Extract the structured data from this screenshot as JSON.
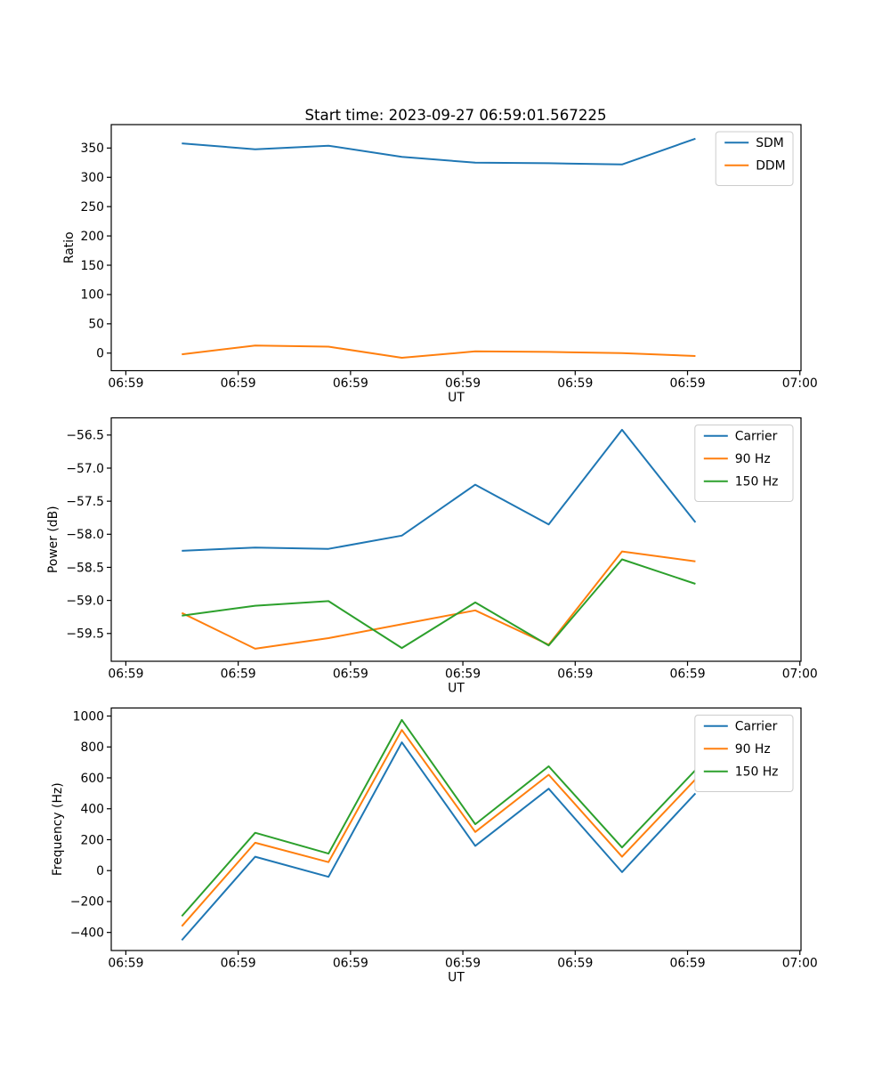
{
  "title": "Start time: 2023-09-27 06:59:01.567225",
  "colors": {
    "blue": "#1f77b4",
    "orange": "#ff7f0e",
    "green": "#2ca02c"
  },
  "x_axis": {
    "label": "UT",
    "tick_labels": [
      "06:59",
      "06:59",
      "06:59",
      "06:59",
      "06:59",
      "06:59",
      "07:00"
    ]
  },
  "chart_data": [
    {
      "type": "line",
      "title": "Start time: 2023-09-27 06:59:01.567225",
      "xlabel": "UT",
      "ylabel": "Ratio",
      "x": [
        4.98,
        11.51,
        18.04,
        24.57,
        31.1,
        37.64,
        44.17,
        50.7
      ],
      "series": [
        {
          "name": "SDM",
          "color": "#1f77b4",
          "values": [
            358,
            348,
            354,
            335,
            325,
            324,
            322,
            366
          ]
        },
        {
          "name": "DDM",
          "color": "#ff7f0e",
          "values": [
            -2,
            13,
            11,
            -8,
            3,
            2,
            0,
            -5
          ]
        }
      ],
      "xlim": [
        -1.3,
        60.1
      ],
      "ylim": [
        -30,
        390
      ],
      "x_ticks": {
        "positions": [
          0,
          10,
          20,
          30,
          40,
          50,
          60
        ],
        "labels": [
          "06:59",
          "06:59",
          "06:59",
          "06:59",
          "06:59",
          "06:59",
          "07:00"
        ]
      },
      "y_ticks": {
        "positions": [
          0,
          50,
          100,
          150,
          200,
          250,
          300,
          350
        ],
        "labels": [
          "0",
          "50",
          "100",
          "150",
          "200",
          "250",
          "300",
          "350"
        ]
      },
      "legend_position": "upper right",
      "grid": false
    },
    {
      "type": "line",
      "title": "",
      "xlabel": "UT",
      "ylabel": "Power (dB)",
      "x": [
        4.98,
        11.51,
        18.04,
        24.57,
        31.1,
        37.64,
        44.17,
        50.7
      ],
      "series": [
        {
          "name": "Carrier",
          "color": "#1f77b4",
          "values": [
            -58.25,
            -58.2,
            -58.22,
            -58.02,
            -57.25,
            -57.85,
            -56.42,
            -57.82
          ]
        },
        {
          "name": "90 Hz",
          "color": "#ff7f0e",
          "values": [
            -59.19,
            -59.73,
            -59.57,
            -59.36,
            -59.15,
            -59.67,
            -58.26,
            -58.41
          ]
        },
        {
          "name": "150 Hz",
          "color": "#2ca02c",
          "values": [
            -59.23,
            -59.08,
            -59.01,
            -59.72,
            -59.03,
            -59.68,
            -58.38,
            -58.75
          ]
        }
      ],
      "xlim": [
        -1.3,
        60.1
      ],
      "ylim": [
        -59.92,
        -56.24
      ],
      "x_ticks": {
        "positions": [
          0,
          10,
          20,
          30,
          40,
          50,
          60
        ],
        "labels": [
          "06:59",
          "06:59",
          "06:59",
          "06:59",
          "06:59",
          "06:59",
          "07:00"
        ]
      },
      "y_ticks": {
        "positions": [
          -56.5,
          -57.0,
          -57.5,
          -58.0,
          -58.5,
          -59.0,
          -59.5
        ],
        "labels": [
          "−56.5",
          "−57.0",
          "−57.5",
          "−58.0",
          "−58.5",
          "−59.0",
          "−59.5"
        ]
      },
      "legend_position": "upper right",
      "grid": false
    },
    {
      "type": "line",
      "title": "",
      "xlabel": "UT",
      "ylabel": "Frequency (Hz)",
      "x": [
        4.98,
        11.51,
        18.04,
        24.57,
        31.1,
        37.64,
        44.17,
        50.7
      ],
      "series": [
        {
          "name": "Carrier",
          "color": "#1f77b4",
          "values": [
            -450,
            90,
            -40,
            830,
            160,
            530,
            -10,
            500
          ]
        },
        {
          "name": "90 Hz",
          "color": "#ff7f0e",
          "values": [
            -360,
            180,
            55,
            910,
            250,
            620,
            90,
            590
          ]
        },
        {
          "name": "150 Hz",
          "color": "#2ca02c",
          "values": [
            -295,
            245,
            110,
            975,
            300,
            675,
            150,
            650
          ]
        }
      ],
      "xlim": [
        -1.3,
        60.1
      ],
      "ylim": [
        -517,
        1052
      ],
      "x_ticks": {
        "positions": [
          0,
          10,
          20,
          30,
          40,
          50,
          60
        ],
        "labels": [
          "06:59",
          "06:59",
          "06:59",
          "06:59",
          "06:59",
          "06:59",
          "07:00"
        ]
      },
      "y_ticks": {
        "positions": [
          1000,
          800,
          600,
          400,
          200,
          0,
          -200,
          -400
        ],
        "labels": [
          "1000",
          "800",
          "600",
          "400",
          "200",
          "0",
          "−200",
          "−400"
        ]
      },
      "legend_position": "upper right",
      "grid": false
    }
  ]
}
